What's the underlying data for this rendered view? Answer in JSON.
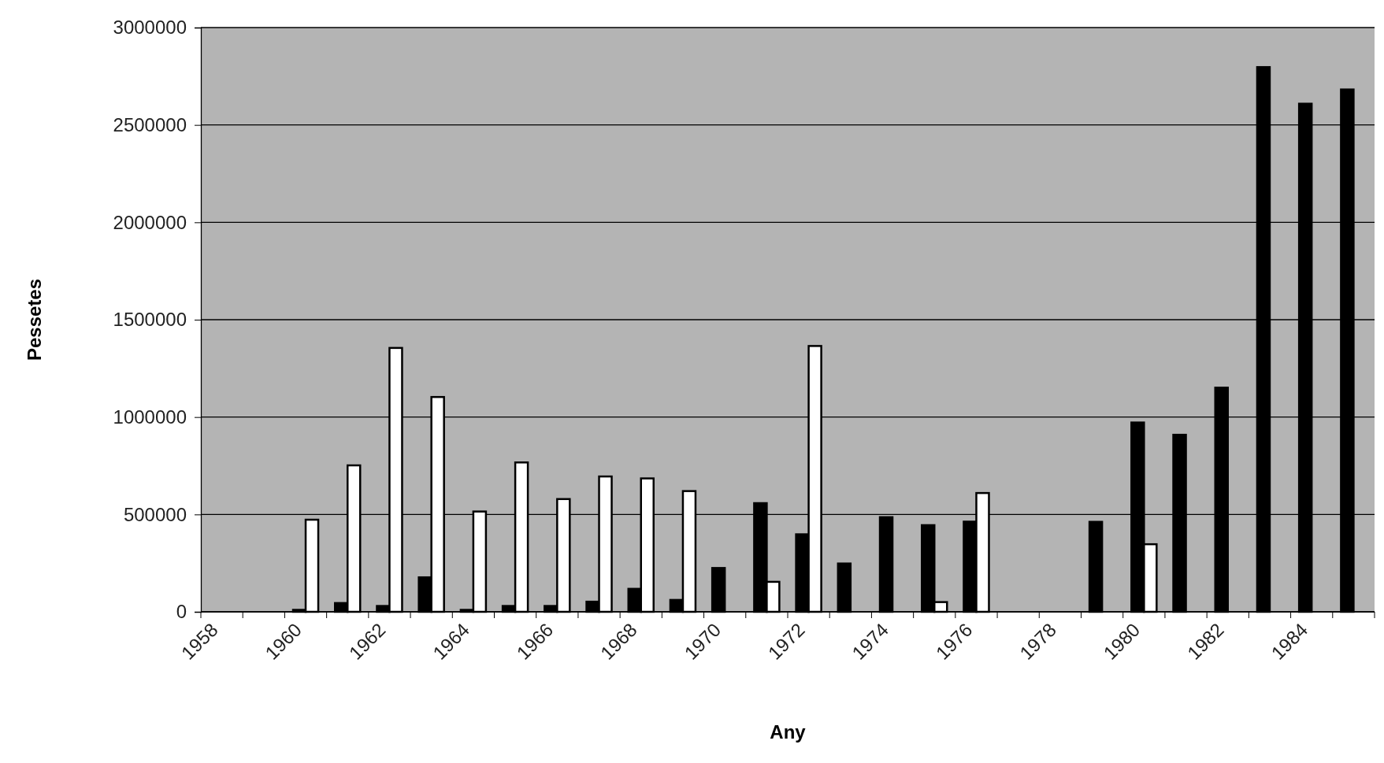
{
  "chart_data": {
    "type": "bar",
    "xlabel": "Any",
    "ylabel": "Pessetes",
    "categories": [
      "1958",
      null,
      "1960",
      null,
      "1962",
      null,
      "1964",
      null,
      "1966",
      null,
      "1968",
      null,
      "1970",
      null,
      "1972",
      null,
      "1974",
      null,
      "1976",
      null,
      "1978",
      null,
      "1980",
      null,
      "1982",
      null,
      "1984",
      null
    ],
    "series": [
      {
        "color": "#000000",
        "values": [
          null,
          null,
          10000,
          45000,
          30000,
          177000,
          10000,
          30000,
          30000,
          52000,
          118000,
          61000,
          225000,
          558000,
          398000,
          248000,
          486000,
          445000,
          463000,
          null,
          null,
          462000,
          972000,
          909000,
          1151000,
          2797000,
          2609000,
          2682000
        ]
      },
      {
        "color": "#ffffff",
        "values": [
          null,
          null,
          473000,
          752000,
          1355000,
          1103000,
          515000,
          767000,
          579000,
          695000,
          685000,
          620000,
          null,
          154000,
          1365000,
          null,
          null,
          50000,
          610000,
          null,
          null,
          null,
          347000,
          null,
          null,
          null,
          null,
          null
        ]
      }
    ],
    "ylim": [
      0,
      3000000
    ],
    "yticks": [
      0,
      500000,
      1000000,
      1500000,
      2000000,
      2500000,
      3000000
    ],
    "grid": "y"
  }
}
